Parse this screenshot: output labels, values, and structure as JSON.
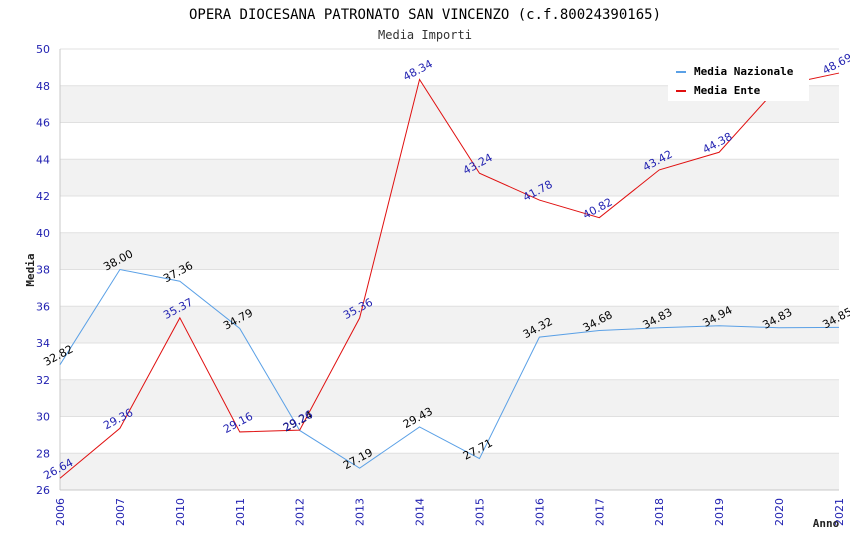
{
  "chart_data": {
    "type": "line",
    "title": "OPERA DIOCESANA PATRONATO SAN VINCENZO (c.f.80024390165)",
    "subtitle": "Media Importi",
    "ylabel": "Media",
    "xlabel": "Anno",
    "ylim": [
      26,
      50
    ],
    "yticks": [
      26,
      28,
      30,
      32,
      34,
      36,
      38,
      40,
      42,
      44,
      46,
      48,
      50
    ],
    "categories": [
      "2006",
      "2007",
      "2010",
      "2011",
      "2012",
      "2013",
      "2014",
      "2015",
      "2016",
      "2017",
      "2018",
      "2019",
      "2020",
      "2021"
    ],
    "grid": "horizontal bands",
    "legend_position": "top-right",
    "series": [
      {
        "name": "Media Nazionale",
        "color": "#5aa0e6",
        "values": [
          32.82,
          38.0,
          37.36,
          34.79,
          29.24,
          27.19,
          29.43,
          27.71,
          34.32,
          34.68,
          34.83,
          34.94,
          34.83,
          34.85
        ],
        "labels": [
          "32.82",
          "38.00",
          "37.36",
          "34.79",
          "29.24",
          "27.19",
          "29.43",
          "27.71",
          "34.32",
          "34.68",
          "34.83",
          "34.94",
          "34.83",
          "34.85"
        ]
      },
      {
        "name": "Media Ente",
        "color": "#e01010",
        "values": [
          26.64,
          29.36,
          35.37,
          29.16,
          29.26,
          35.36,
          48.34,
          43.24,
          41.78,
          40.82,
          43.42,
          44.38,
          48.0,
          48.69
        ],
        "labels": [
          "26.64",
          "29.36",
          "35.37",
          "29.16",
          "29.26",
          "35.36",
          "48.34",
          "43.24",
          "41.78",
          "40.82",
          "43.42",
          "44.38",
          "",
          "48.69"
        ]
      }
    ]
  }
}
